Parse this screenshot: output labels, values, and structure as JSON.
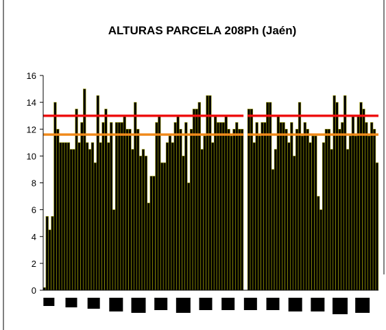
{
  "chart_data": {
    "type": "bar",
    "title": "ALTURAS PARCELA 208Ph (Jaén)",
    "xlabel": "",
    "ylabel": "",
    "ylim": [
      0,
      16
    ],
    "yticks": [
      "0",
      "2",
      "4",
      "6",
      "8",
      "10",
      "12",
      "14",
      "16"
    ],
    "grid": false,
    "legend": "none",
    "colors": {
      "bar_fill": "#000000",
      "bar_edge": "#999900",
      "line_upper": "#ee1111",
      "line_lower": "#f08a1c",
      "axis": "#000000",
      "background": "#ffffff"
    },
    "reference_lines": [
      {
        "value": 13.0,
        "color": "#ee1111"
      },
      {
        "value": 11.6,
        "color": "#f08a1c"
      }
    ],
    "segments": [
      {
        "values": [
          0.2,
          5.5,
          4.5,
          5.5,
          14.0,
          12.0,
          11.0,
          11.0,
          11.0,
          11.0,
          10.5,
          10.5,
          13.5,
          11.0,
          12.5,
          15.0,
          11.0,
          10.5,
          11.0,
          9.5,
          14.5,
          11.0,
          12.5,
          13.5,
          11.0,
          12.5,
          6.0,
          12.5,
          12.5,
          12.5,
          13.0,
          12.0,
          12.0,
          10.5,
          14.0,
          12.0,
          10.0,
          10.5,
          10.0,
          6.5,
          8.5,
          8.5,
          12.5,
          13.0,
          9.5,
          9.5,
          11.0,
          11.5,
          11.0,
          12.5,
          13.0,
          12.0,
          10.0,
          12.5,
          8.0,
          12.0,
          13.5,
          13.5,
          14.0,
          10.5,
          11.5,
          14.5,
          14.5,
          11.0,
          13.0,
          12.5,
          12.5,
          12.5,
          13.0,
          12.0,
          11.5,
          12.0,
          12.5,
          12.0,
          12.0
        ]
      },
      {
        "values": [
          13.5,
          13.5,
          11.0,
          12.5,
          11.5,
          12.5,
          12.5,
          14.0,
          14.0,
          9.0,
          10.5,
          13.0,
          12.5,
          12.5,
          12.0,
          11.0,
          12.5,
          10.0,
          12.0,
          14.0,
          11.5,
          12.5,
          12.0,
          11.0,
          11.5,
          11.5,
          7.0,
          6.0,
          11.0,
          12.0,
          12.0,
          10.5,
          14.5,
          14.0,
          12.0,
          12.5,
          14.5,
          10.5,
          11.5,
          13.0,
          11.5,
          13.0,
          14.0,
          13.5,
          12.5,
          11.5,
          12.5,
          12.0,
          9.5
        ]
      }
    ],
    "group_markers": [
      {
        "size": 0.4
      },
      {
        "size": 0.5
      },
      {
        "size": 0.6
      },
      {
        "size": 0.8
      },
      {
        "size": 0.9
      },
      {
        "size": 0.7
      },
      {
        "size": 0.9
      },
      {
        "size": 0.7
      },
      {
        "size": 0.7
      },
      {
        "size": 0.7
      },
      {
        "size": 0.7
      },
      {
        "size": 0.8
      },
      {
        "size": 0.8
      },
      {
        "size": 1.0
      },
      {
        "size": 0.9
      }
    ]
  }
}
